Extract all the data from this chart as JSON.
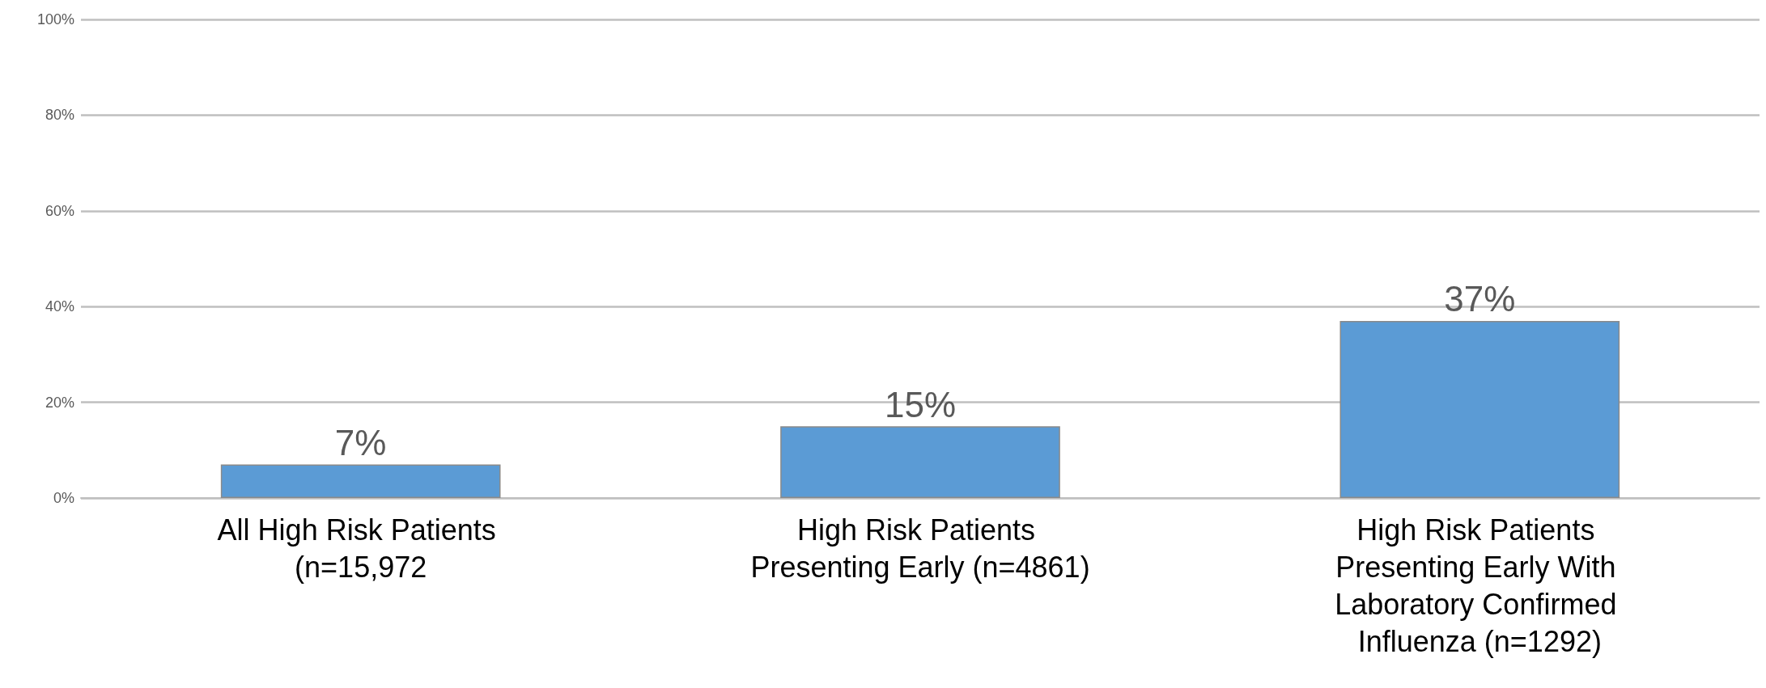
{
  "chart_data": {
    "type": "bar",
    "categories": [
      "All High Risk Patients (n=15,972",
      "High Risk Patients Presenting Early (n=4861)",
      "High Risk Patients Presenting Early With Laboratory Confirmed Influenza (n=1292)"
    ],
    "values": [
      7,
      15,
      37
    ],
    "value_labels": [
      "7%",
      "15%",
      "37%"
    ],
    "color": "#5b9bd5",
    "ylim": [
      0,
      100
    ],
    "yticks": [
      {
        "value": 0,
        "label": "0%"
      },
      {
        "value": 20,
        "label": "20%"
      },
      {
        "value": 40,
        "label": "40%"
      },
      {
        "value": 60,
        "label": "60%"
      },
      {
        "value": 80,
        "label": "80%"
      },
      {
        "value": 100,
        "label": "100%"
      }
    ],
    "grid": true
  }
}
